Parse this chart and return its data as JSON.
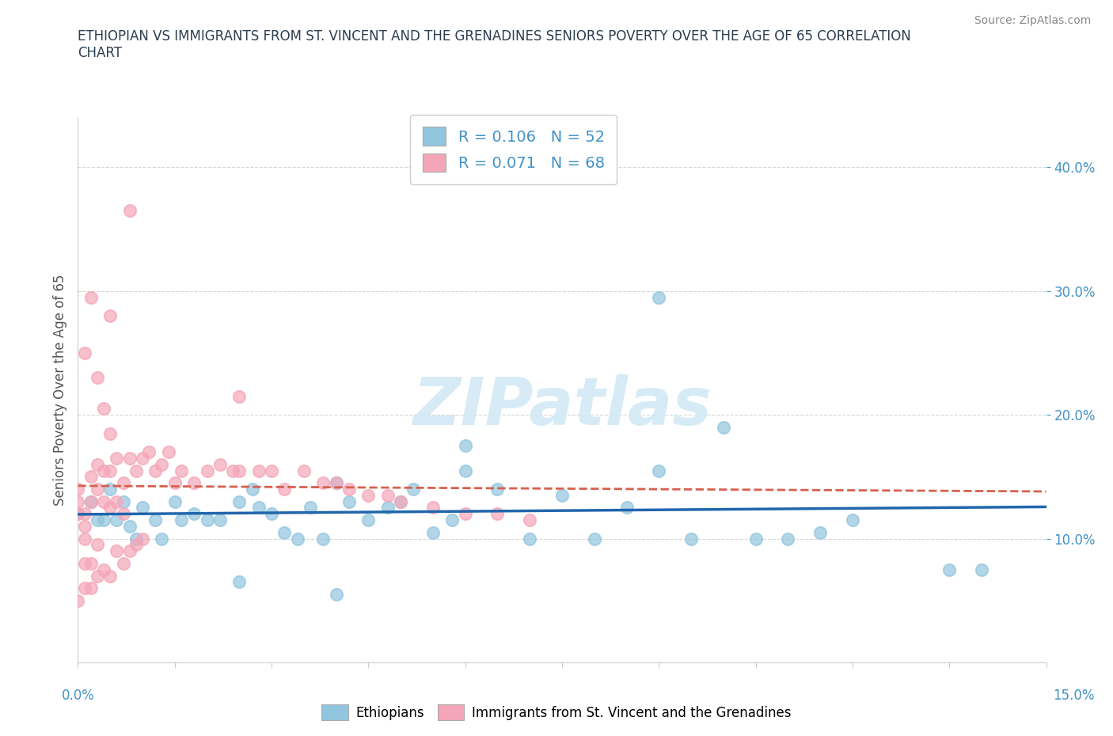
{
  "title": "ETHIOPIAN VS IMMIGRANTS FROM ST. VINCENT AND THE GRENADINES SENIORS POVERTY OVER THE AGE OF 65 CORRELATION\nCHART",
  "source": "Source: ZipAtlas.com",
  "ylabel": "Seniors Poverty Over the Age of 65",
  "yticks": [
    0.1,
    0.2,
    0.3,
    0.4
  ],
  "ytick_labels": [
    "10.0%",
    "20.0%",
    "30.0%",
    "40.0%"
  ],
  "xlim": [
    0.0,
    0.15
  ],
  "ylim": [
    0.0,
    0.44
  ],
  "watermark": "ZIPatlas",
  "legend1_R": "0.106",
  "legend1_N": 52,
  "legend2_R": "0.071",
  "legend2_N": 68,
  "blue_color": "#92c5de",
  "pink_color": "#f4a6b8",
  "line_blue": "#2166ac",
  "line_pink": "#d6604d",
  "ethiopian_x": [
    0.0,
    0.002,
    0.003,
    0.004,
    0.005,
    0.006,
    0.007,
    0.008,
    0.009,
    0.01,
    0.012,
    0.013,
    0.015,
    0.016,
    0.018,
    0.02,
    0.022,
    0.025,
    0.027,
    0.028,
    0.03,
    0.032,
    0.034,
    0.036,
    0.038,
    0.04,
    0.042,
    0.045,
    0.048,
    0.05,
    0.052,
    0.055,
    0.058,
    0.06,
    0.065,
    0.07,
    0.075,
    0.08,
    0.085,
    0.09,
    0.095,
    0.1,
    0.105,
    0.11,
    0.115,
    0.12,
    0.09,
    0.06,
    0.04,
    0.025,
    0.135,
    0.14
  ],
  "ethiopian_y": [
    0.12,
    0.13,
    0.115,
    0.115,
    0.14,
    0.115,
    0.13,
    0.11,
    0.1,
    0.125,
    0.115,
    0.1,
    0.13,
    0.115,
    0.12,
    0.115,
    0.115,
    0.13,
    0.14,
    0.125,
    0.12,
    0.105,
    0.1,
    0.125,
    0.1,
    0.145,
    0.13,
    0.115,
    0.125,
    0.13,
    0.14,
    0.105,
    0.115,
    0.155,
    0.14,
    0.1,
    0.135,
    0.1,
    0.125,
    0.155,
    0.1,
    0.19,
    0.1,
    0.1,
    0.105,
    0.115,
    0.295,
    0.175,
    0.055,
    0.065,
    0.075,
    0.075
  ],
  "svg_x": [
    0.0,
    0.0,
    0.0,
    0.0,
    0.001,
    0.001,
    0.001,
    0.001,
    0.001,
    0.002,
    0.002,
    0.002,
    0.002,
    0.003,
    0.003,
    0.003,
    0.003,
    0.004,
    0.004,
    0.004,
    0.005,
    0.005,
    0.005,
    0.005,
    0.006,
    0.006,
    0.006,
    0.007,
    0.007,
    0.007,
    0.008,
    0.008,
    0.009,
    0.009,
    0.01,
    0.01,
    0.011,
    0.012,
    0.013,
    0.014,
    0.015,
    0.016,
    0.018,
    0.02,
    0.022,
    0.024,
    0.025,
    0.028,
    0.03,
    0.032,
    0.035,
    0.038,
    0.04,
    0.042,
    0.045,
    0.048,
    0.05,
    0.055,
    0.06,
    0.065,
    0.07,
    0.025,
    0.008,
    0.005,
    0.002,
    0.001,
    0.003,
    0.004
  ],
  "svg_y": [
    0.14,
    0.13,
    0.12,
    0.05,
    0.12,
    0.11,
    0.1,
    0.08,
    0.06,
    0.15,
    0.13,
    0.08,
    0.06,
    0.16,
    0.14,
    0.095,
    0.07,
    0.155,
    0.13,
    0.075,
    0.185,
    0.155,
    0.125,
    0.07,
    0.165,
    0.13,
    0.09,
    0.145,
    0.12,
    0.08,
    0.165,
    0.09,
    0.155,
    0.095,
    0.165,
    0.1,
    0.17,
    0.155,
    0.16,
    0.17,
    0.145,
    0.155,
    0.145,
    0.155,
    0.16,
    0.155,
    0.155,
    0.155,
    0.155,
    0.14,
    0.155,
    0.145,
    0.145,
    0.14,
    0.135,
    0.135,
    0.13,
    0.125,
    0.12,
    0.12,
    0.115,
    0.215,
    0.365,
    0.28,
    0.295,
    0.25,
    0.23,
    0.205
  ]
}
